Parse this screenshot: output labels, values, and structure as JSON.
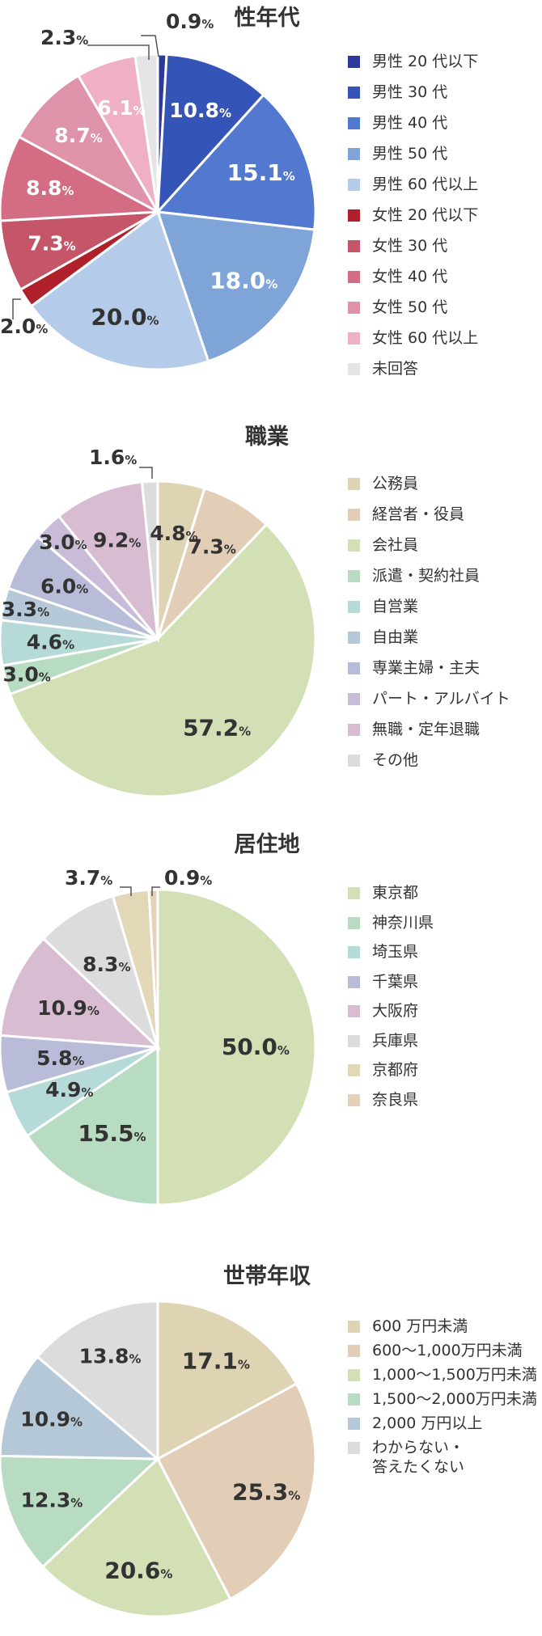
{
  "charts": [
    {
      "title": "性年代",
      "chart_data": {
        "type": "pie",
        "title": "性年代",
        "unit": "%",
        "categories": [
          "男性 20 代以下",
          "男性 30 代",
          "男性 40 代",
          "男性 50 代",
          "男性 60 代以上",
          "女性 20 代以下",
          "女性 30 代",
          "女性 40 代",
          "女性 50 代",
          "女性 60 代以上",
          "未回答"
        ],
        "values": [
          0.9,
          10.8,
          15.1,
          18.0,
          20.0,
          2.0,
          7.3,
          8.8,
          8.7,
          6.1,
          2.3
        ],
        "label_values": [
          "0.9",
          "10.8",
          "15.1",
          "18.0",
          "20.0",
          "2.0",
          "7.3",
          "8.8",
          "8.7",
          "6.1",
          "2.3"
        ],
        "colors": [
          "#2b3a9c",
          "#3554b8",
          "#5378cf",
          "#7fa5d8",
          "#b4ccea",
          "#b0202a",
          "#c5566a",
          "#d46d84",
          "#de93a8",
          "#efafc5",
          "#e5e5e8"
        ]
      }
    },
    {
      "title": "職業",
      "chart_data": {
        "type": "pie",
        "title": "職業",
        "unit": "%",
        "categories": [
          "公務員",
          "経営者・役員",
          "会社員",
          "派遣・契約社員",
          "自営業",
          "自由業",
          "専業主婦・主夫",
          "パート・アルバイト",
          "無職・定年退職",
          "その他"
        ],
        "values": [
          4.8,
          7.3,
          57.2,
          3.0,
          4.6,
          3.3,
          6.0,
          3.0,
          9.2,
          1.6
        ],
        "label_values": [
          "4.8",
          "7.3",
          "57.2",
          "3.0",
          "4.6",
          "3.3",
          "6.0",
          "3.0",
          "9.2",
          "1.6"
        ],
        "colors": [
          "#ded4b4",
          "#e2cdb7",
          "#d3dfb5",
          "#b8dcc2",
          "#b6dad8",
          "#b4c8d8",
          "#b9bcd8",
          "#c8bcd8",
          "#d8bcd2",
          "#dcdcdc"
        ]
      }
    },
    {
      "title": "居住地",
      "chart_data": {
        "type": "pie",
        "title": "居住地",
        "unit": "%",
        "categories": [
          "東京都",
          "神奈川県",
          "埼玉県",
          "千葉県",
          "大阪府",
          "兵庫県",
          "京都府",
          "奈良県"
        ],
        "values": [
          50.0,
          15.5,
          4.9,
          5.8,
          10.9,
          8.3,
          3.7,
          0.9
        ],
        "label_values": [
          "50.0",
          "15.5",
          "4.9",
          "5.8",
          "10.9",
          "8.3",
          "3.7",
          "0.9"
        ],
        "colors": [
          "#d3dfb5",
          "#b8dcc2",
          "#b6dad8",
          "#b9bcd8",
          "#d8bcd2",
          "#dcdcdc",
          "#e2d8b8",
          "#e5d0b8"
        ]
      }
    },
    {
      "title": "世帯年収",
      "chart_data": {
        "type": "pie",
        "title": "世帯年収",
        "unit": "%",
        "categories": [
          "600 万円未満",
          "600〜1,000万円未満",
          "1,000〜1,500万円未満",
          "1,500〜2,000万円未満",
          "2,000 万円以上",
          "わからない・\n答えたくない"
        ],
        "values": [
          17.1,
          25.3,
          20.6,
          12.3,
          10.9,
          13.8
        ],
        "label_values": [
          "17.1",
          "25.3",
          "20.6",
          "12.3",
          "10.9",
          "13.8"
        ],
        "colors": [
          "#ded4b4",
          "#e2cdb7",
          "#d3dfb5",
          "#b8dcc2",
          "#b4c8d8",
          "#dcdcdc"
        ]
      }
    }
  ]
}
